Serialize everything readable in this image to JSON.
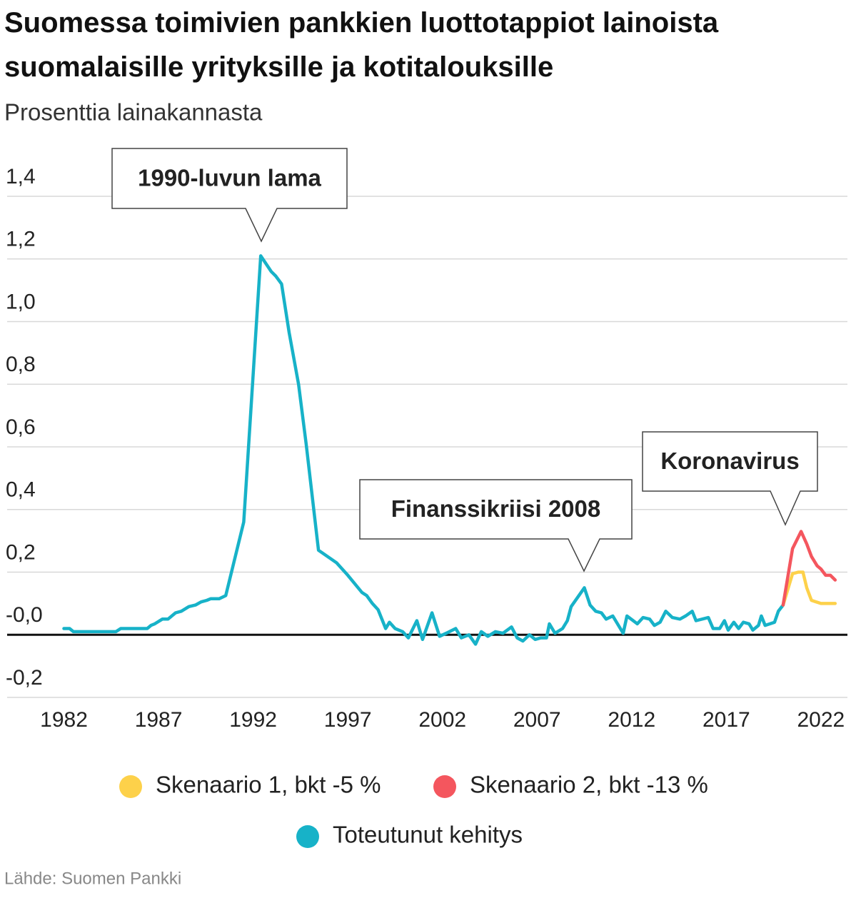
{
  "chart_data": {
    "type": "line",
    "title": "Suomessa toimivien pankkien luottotappiot lainoista suomalaisille yrityksille ja kotitalouksille",
    "subtitle": "Prosenttia lainakannasta",
    "source": "Lähde: Suomen Pankki",
    "annotations": [
      "1990-luvun lama",
      "Finanssikriisi 2008",
      "Koronavirus"
    ],
    "xlim": [
      1979,
      2023.4
    ],
    "xticks": [
      1982,
      1987,
      1992,
      1997,
      2002,
      2007,
      2012,
      2017,
      2022
    ],
    "ylim": [
      -0.2,
      1.4
    ],
    "yticks": [
      {
        "value": -0.2,
        "label": "-0,2"
      },
      {
        "value": 0,
        "label": "-0,0"
      },
      {
        "value": 0.2,
        "label": "0,2"
      },
      {
        "value": 0.4,
        "label": "0,4"
      },
      {
        "value": 0.6,
        "label": "0,6"
      },
      {
        "value": 0.8,
        "label": "0,8"
      },
      {
        "value": 1.0,
        "label": "1,0"
      },
      {
        "value": 1.2,
        "label": "1,2"
      },
      {
        "value": 1.4,
        "label": "1,4"
      }
    ],
    "grid": true,
    "series": [
      {
        "name": "Skenaario 1, bkt -5 %",
        "color": "#fdd14a",
        "x": [
          2020.0,
          2020.5,
          2020.8,
          2021.05,
          2021.25,
          2021.5,
          2022.0,
          2022.75
        ],
        "values": [
          0.095,
          0.195,
          0.2,
          0.2,
          0.15,
          0.11,
          0.1,
          0.1
        ]
      },
      {
        "name": "Skenaario 2, bkt -13 %",
        "color": "#f4565e",
        "x": [
          2020.0,
          2020.5,
          2020.95,
          2021.25,
          2021.5,
          2021.8,
          2022.0,
          2022.25,
          2022.5,
          2022.75
        ],
        "values": [
          0.095,
          0.275,
          0.33,
          0.29,
          0.25,
          0.22,
          0.21,
          0.19,
          0.19,
          0.175
        ]
      },
      {
        "name": "Toteutunut kehitys",
        "color": "#17b2c8",
        "x": [
          1982.0,
          1982.3,
          1982.5,
          1984.75,
          1985.0,
          1986.4,
          1986.6,
          1986.8,
          1987.2,
          1987.5,
          1987.9,
          1988.2,
          1988.6,
          1988.95,
          1989.25,
          1989.55,
          1989.75,
          1990.2,
          1990.55,
          1991.5,
          1992.4,
          1992.95,
          1993.2,
          1993.5,
          1993.9,
          1994.4,
          1994.8,
          1995.45,
          1996.4,
          1997.0,
          1997.75,
          1998.0,
          1998.3,
          1998.6,
          1999.0,
          1999.2,
          1999.5,
          1999.9,
          2000.2,
          2000.65,
          2000.95,
          2001.45,
          2001.85,
          2002.2,
          2002.7,
          2003.0,
          2003.4,
          2003.75,
          2004.05,
          2004.4,
          2004.8,
          2005.2,
          2005.65,
          2005.95,
          2006.25,
          2006.6,
          2006.9,
          2007.2,
          2007.5,
          2007.65,
          2007.95,
          2008.35,
          2008.6,
          2008.8,
          2009.5,
          2009.8,
          2010.1,
          2010.4,
          2010.65,
          2011.0,
          2011.55,
          2011.75,
          2012.3,
          2012.6,
          2012.95,
          2013.2,
          2013.5,
          2013.8,
          2014.15,
          2014.55,
          2014.85,
          2015.2,
          2015.4,
          2016.05,
          2016.3,
          2016.65,
          2016.9,
          2017.1,
          2017.4,
          2017.65,
          2017.9,
          2018.2,
          2018.4,
          2018.7,
          2018.85,
          2019.05,
          2019.55,
          2019.75,
          2020.0
        ],
        "values": [
          0.02,
          0.02,
          0.01,
          0.01,
          0.02,
          0.02,
          0.03,
          0.035,
          0.05,
          0.05,
          0.07,
          0.075,
          0.09,
          0.095,
          0.105,
          0.11,
          0.115,
          0.115,
          0.125,
          0.36,
          1.21,
          1.16,
          1.145,
          1.12,
          0.965,
          0.8,
          0.61,
          0.27,
          0.23,
          0.19,
          0.135,
          0.125,
          0.1,
          0.08,
          0.02,
          0.04,
          0.02,
          0.01,
          -0.01,
          0.045,
          -0.015,
          0.07,
          -0.005,
          0.005,
          0.02,
          -0.01,
          0.0,
          -0.03,
          0.01,
          -0.005,
          0.01,
          0.005,
          0.025,
          -0.01,
          -0.02,
          0.0,
          -0.015,
          -0.01,
          -0.01,
          0.035,
          0.005,
          0.02,
          0.045,
          0.09,
          0.15,
          0.095,
          0.075,
          0.07,
          0.05,
          0.06,
          0.005,
          0.06,
          0.035,
          0.055,
          0.05,
          0.03,
          0.04,
          0.075,
          0.055,
          0.05,
          0.06,
          0.075,
          0.045,
          0.055,
          0.02,
          0.02,
          0.045,
          0.015,
          0.04,
          0.02,
          0.04,
          0.035,
          0.015,
          0.03,
          0.06,
          0.03,
          0.04,
          0.075,
          0.095
        ]
      }
    ]
  }
}
